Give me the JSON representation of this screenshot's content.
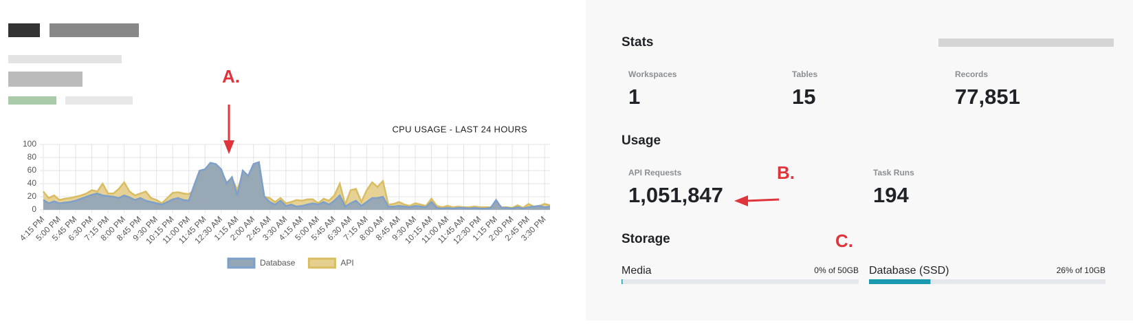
{
  "chart_data": {
    "type": "area",
    "title": "CPU USAGE - LAST 24 HOURS",
    "categories": [
      "4:15 PM",
      null,
      null,
      "5:00 PM",
      null,
      null,
      "5:45 PM",
      null,
      null,
      "6:30 PM",
      null,
      null,
      "7:15 PM",
      null,
      null,
      "8:00 PM",
      null,
      null,
      "8:45 PM",
      null,
      null,
      "9:30 PM",
      null,
      null,
      "10:15 PM",
      null,
      null,
      "11:00 PM",
      null,
      null,
      "11:45 PM",
      null,
      null,
      "12:30 AM",
      null,
      null,
      "1:15 AM",
      null,
      null,
      "2:00 AM",
      null,
      null,
      "2:45 AM",
      null,
      null,
      "3:30 AM",
      null,
      null,
      "4:15 AM",
      null,
      null,
      "5:00 AM",
      null,
      null,
      "5:45 AM",
      null,
      null,
      "6:30 AM",
      null,
      null,
      "7:15 AM",
      null,
      null,
      "8:00 AM",
      null,
      null,
      "8:45 AM",
      null,
      null,
      "9:30 AM",
      null,
      null,
      "10:15 AM",
      null,
      null,
      "11:00 AM",
      null,
      null,
      "11:45 AM",
      null,
      null,
      "12:30 PM",
      null,
      null,
      "1:15 PM",
      null,
      null,
      "2:00 PM",
      null,
      null,
      "2:45 PM",
      null,
      null,
      "3:30 PM",
      null
    ],
    "series": [
      {
        "name": "API",
        "color": "#d8bd62",
        "fill": "#e6d08f",
        "values": [
          28,
          18,
          22,
          15,
          17,
          18,
          20,
          22,
          25,
          30,
          28,
          40,
          25,
          25,
          32,
          42,
          28,
          22,
          25,
          28,
          18,
          15,
          10,
          18,
          26,
          27,
          25,
          24,
          30,
          55,
          60,
          65,
          65,
          60,
          42,
          48,
          30,
          55,
          50,
          65,
          70,
          20,
          18,
          12,
          18,
          10,
          12,
          15,
          14,
          16,
          16,
          10,
          17,
          14,
          22,
          40,
          8,
          30,
          32,
          12,
          30,
          42,
          35,
          44,
          8,
          9,
          12,
          8,
          6,
          10,
          8,
          6,
          17,
          6,
          4,
          6,
          4,
          5,
          4,
          4,
          5,
          4,
          4,
          4,
          12,
          4,
          4,
          3,
          7,
          3,
          9,
          5,
          6,
          9,
          7
        ]
      },
      {
        "name": "Database",
        "color": "#7d9fc9",
        "fill": "#93a7b6",
        "values": [
          15,
          10,
          13,
          10,
          11,
          12,
          14,
          17,
          20,
          23,
          25,
          22,
          21,
          20,
          18,
          22,
          19,
          15,
          18,
          14,
          12,
          10,
          8,
          12,
          16,
          18,
          15,
          14,
          38,
          60,
          62,
          72,
          70,
          62,
          40,
          50,
          22,
          60,
          52,
          70,
          73,
          20,
          12,
          8,
          14,
          6,
          8,
          5,
          6,
          8,
          10,
          8,
          12,
          8,
          14,
          22,
          5,
          10,
          14,
          6,
          12,
          18,
          18,
          20,
          5,
          5,
          6,
          5,
          4,
          6,
          5,
          4,
          12,
          3,
          2,
          3,
          2,
          3,
          3,
          2,
          3,
          2,
          2,
          3,
          15,
          3,
          3,
          2,
          4,
          2,
          4,
          5,
          6,
          4,
          5
        ]
      }
    ],
    "legend_order": [
      1,
      0
    ],
    "ylim": [
      0,
      100
    ],
    "yticks": [
      0,
      20,
      40,
      60,
      80,
      100
    ],
    "grid": true
  },
  "annotations": [
    "A.",
    "B.",
    "C."
  ],
  "stats": {
    "title": "Stats",
    "items": [
      {
        "label": "Workspaces",
        "value": "1"
      },
      {
        "label": "Tables",
        "value": "15"
      },
      {
        "label": "Records",
        "value": "77,851"
      }
    ]
  },
  "usage": {
    "title": "Usage",
    "items": [
      {
        "label": "API Requests",
        "value": "1,051,847"
      },
      {
        "label": "Task Runs",
        "value": "194"
      }
    ]
  },
  "storage": {
    "title": "Storage",
    "items": [
      {
        "label": "Media",
        "usage": "0% of 50GB",
        "percent": 0
      },
      {
        "label": "Database (SSD)",
        "usage": "26% of 10GB",
        "percent": 26
      }
    ]
  }
}
